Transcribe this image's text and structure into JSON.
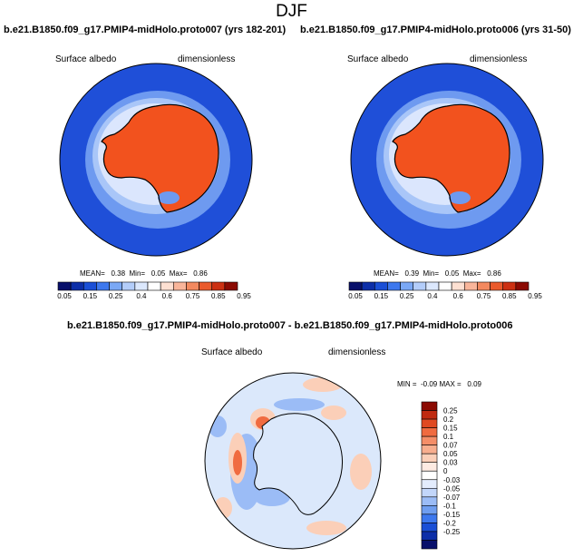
{
  "title": "DJF",
  "panels": [
    {
      "title": "b.e21.B1850.f09_g17.PMIP4-midHolo.proto007 (yrs 182-201)",
      "variable": "Surface albedo",
      "units": "dimensionless",
      "stats": {
        "mean_label": "MEAN=",
        "mean": "0.38",
        "min_label": "Min=",
        "min": "0.05",
        "max_label": "Max=",
        "max": "0.86"
      }
    },
    {
      "title": "b.e21.B1850.f09_g17.PMIP4-midHolo.proto006 (yrs 31-50)",
      "variable": "Surface albedo",
      "units": "dimensionless",
      "stats": {
        "mean_label": "MEAN=",
        "mean": "0.39",
        "min_label": "Min=",
        "min": "0.05",
        "max_label": "Max=",
        "max": "0.86"
      }
    },
    {
      "title": "b.e21.B1850.f09_g17.PMIP4-midHolo.proto007 - b.e21.B1850.f09_g17.PMIP4-midHolo.proto006",
      "variable": "Surface albedo",
      "units": "dimensionless",
      "stats": {
        "min_label": "MIN =",
        "min": "-0.09",
        "max_label": "MAX =",
        "max": "0.09"
      }
    }
  ],
  "colorbars": {
    "albedo": {
      "labels": [
        "0.05",
        "0.15",
        "0.25",
        "0.4",
        "0.6",
        "0.75",
        "0.85",
        "0.95"
      ],
      "colors": [
        "#08106b",
        "#0c2ea8",
        "#1a4fd6",
        "#3d78ee",
        "#7aa8f5",
        "#b3cdfa",
        "#dce8fd",
        "#ffffff",
        "#fde0d2",
        "#f9b59a",
        "#f3895f",
        "#ea5a2c",
        "#cc3012",
        "#8b0a02"
      ]
    },
    "diff": {
      "labels": [
        "0.25",
        "0.2",
        "0.15",
        "0.1",
        "0.07",
        "0.05",
        "0.03",
        "0",
        "-0.03",
        "-0.05",
        "-0.07",
        "-0.1",
        "-0.15",
        "-0.2",
        "-0.25"
      ],
      "colors": [
        "#8b0a02",
        "#c02a10",
        "#e04a22",
        "#f06b40",
        "#f58e68",
        "#f8ae8e",
        "#fbcfb8",
        "#fdebe2",
        "#ffffff",
        "#e3ecfd",
        "#c2d6fa",
        "#9bbcf6",
        "#6f9ef0",
        "#3d78ee",
        "#1a4fd6",
        "#0c2ea8",
        "#08106b"
      ]
    }
  },
  "map_colors": {
    "ocean": "#1f4fd8",
    "ice_edge": "#6e9af0",
    "ice_mid": "#a9c6f8",
    "ice_light": "#dbe6fd",
    "land": "#f2521e",
    "diff_background": "#dbe8fb",
    "diff_positive": "#fbcfb8",
    "diff_strong_positive": "#f06b40",
    "diff_negative": "#9bbcf6"
  }
}
